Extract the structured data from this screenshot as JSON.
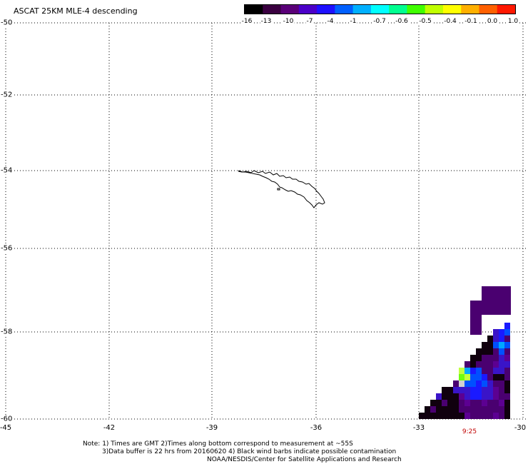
{
  "title": "ASCAT 25KM MLE-4 descending",
  "colorbar": {
    "labels": [
      "-16",
      "-13",
      "-10",
      "-7",
      "-4",
      "-1",
      "-0.7",
      "-0.6",
      "-0.5",
      "-0.4",
      "-0.1",
      "0.0",
      "1.0"
    ],
    "colors": [
      "#000000",
      "#3a0040",
      "#5a0078",
      "#4b00c8",
      "#1e10ff",
      "#0060ff",
      "#00b0ff",
      "#00ffff",
      "#00ff90",
      "#40ff00",
      "#c0ff00",
      "#ffff00",
      "#ffb000",
      "#ff6000",
      "#ff1800"
    ]
  },
  "map": {
    "lat_labels": [
      "-50",
      "-52",
      "-54",
      "-56",
      "-58",
      "-60"
    ],
    "lon_labels": [
      "-45",
      "-42",
      "-39",
      "-36",
      "-33",
      "-30"
    ],
    "lat_values": [
      -50,
      -52,
      -54,
      -56,
      -58,
      -60
    ],
    "lon_values": [
      -45,
      -42,
      -39,
      -36,
      -33,
      -30
    ],
    "time_label": "9:25",
    "outline_label": "South Georgia Island coastline"
  },
  "notes": {
    "line1": "Note: 1) Times are GMT 2)Times along bottom correspond to measurement at ~55S",
    "line2": "3)Data buffer is 22 hrs from 20160620 4) Black wind barbs indicate possible contamination",
    "line3": "NOAA/NESDIS/Center for Satellite Applications and Research"
  }
}
